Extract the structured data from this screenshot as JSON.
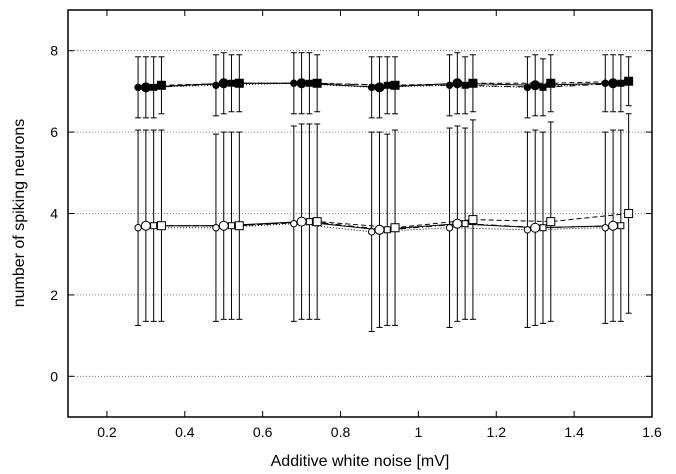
{
  "chart_data": {
    "type": "scatter",
    "title": "",
    "xlabel": "Additive white noise [mV]",
    "ylabel": "number of spiking neurons",
    "xlim": [
      0.1,
      1.6
    ],
    "ylim": [
      -1,
      9
    ],
    "xticks": [
      0.2,
      0.4,
      0.6,
      0.8,
      1.0,
      1.2,
      1.4,
      1.6
    ],
    "xtick_labels": [
      "0.2",
      "0.4",
      "0.6",
      "0.8",
      "1",
      "1.2",
      "1.4",
      "1.6"
    ],
    "yticks": [
      0,
      2,
      4,
      6,
      8
    ],
    "ytick_labels": [
      "0",
      "2",
      "4",
      "6",
      "8"
    ],
    "grid": "horizontal dotted",
    "legend": "none",
    "series": [
      {
        "marker": "filled-small-circle",
        "line": "dotted",
        "x": [
          0.28,
          0.48,
          0.68,
          0.88,
          1.08,
          1.28,
          1.48
        ],
        "y": [
          7.1,
          7.15,
          7.2,
          7.1,
          7.15,
          7.1,
          7.2
        ],
        "yerr": [
          0.75,
          0.75,
          0.75,
          0.75,
          0.75,
          0.75,
          0.7
        ]
      },
      {
        "marker": "filled-large-circle",
        "line": "solid",
        "x": [
          0.3,
          0.5,
          0.7,
          0.9,
          1.1,
          1.3,
          1.5
        ],
        "y": [
          7.1,
          7.2,
          7.2,
          7.1,
          7.2,
          7.15,
          7.2
        ],
        "yerr": [
          0.75,
          0.75,
          0.75,
          0.75,
          0.75,
          0.75,
          0.7
        ]
      },
      {
        "marker": "filled-small-square",
        "line": "dash-dot",
        "x": [
          0.32,
          0.52,
          0.72,
          0.92,
          1.12,
          1.32,
          1.52
        ],
        "y": [
          7.1,
          7.2,
          7.2,
          7.15,
          7.15,
          7.1,
          7.2
        ],
        "yerr": [
          0.75,
          0.7,
          0.75,
          0.7,
          0.7,
          0.7,
          0.7
        ]
      },
      {
        "marker": "filled-large-square",
        "line": "dashed",
        "x": [
          0.34,
          0.54,
          0.74,
          0.94,
          1.14,
          1.34,
          1.54
        ],
        "y": [
          7.15,
          7.2,
          7.2,
          7.15,
          7.2,
          7.2,
          7.25
        ],
        "yerr": [
          0.7,
          0.7,
          0.7,
          0.7,
          0.7,
          0.7,
          0.6
        ]
      },
      {
        "marker": "open-small-circle",
        "line": "dotted",
        "x": [
          0.28,
          0.48,
          0.68,
          0.88,
          1.08,
          1.28,
          1.48
        ],
        "y": [
          3.65,
          3.65,
          3.75,
          3.55,
          3.65,
          3.6,
          3.65
        ],
        "yerr": [
          2.4,
          2.3,
          2.4,
          2.45,
          2.45,
          2.4,
          2.35
        ]
      },
      {
        "marker": "open-large-circle",
        "line": "solid",
        "x": [
          0.3,
          0.5,
          0.7,
          0.9,
          1.1,
          1.3,
          1.5
        ],
        "y": [
          3.7,
          3.7,
          3.8,
          3.6,
          3.75,
          3.65,
          3.7
        ],
        "yerr": [
          2.35,
          2.3,
          2.4,
          2.4,
          2.4,
          2.4,
          2.35
        ]
      },
      {
        "marker": "open-small-square",
        "line": "dash-dot",
        "x": [
          0.32,
          0.52,
          0.72,
          0.92,
          1.12,
          1.32,
          1.52
        ],
        "y": [
          3.7,
          3.7,
          3.8,
          3.6,
          3.75,
          3.65,
          3.7
        ],
        "yerr": [
          2.35,
          2.3,
          2.4,
          2.35,
          2.35,
          2.35,
          2.35
        ]
      },
      {
        "marker": "open-large-square",
        "line": "dashed",
        "x": [
          0.34,
          0.54,
          0.74,
          0.94,
          1.14,
          1.34,
          1.54
        ],
        "y": [
          3.7,
          3.7,
          3.8,
          3.65,
          3.85,
          3.8,
          4.0
        ],
        "yerr": [
          2.35,
          2.3,
          2.4,
          2.4,
          2.45,
          2.45,
          2.45
        ]
      }
    ]
  }
}
